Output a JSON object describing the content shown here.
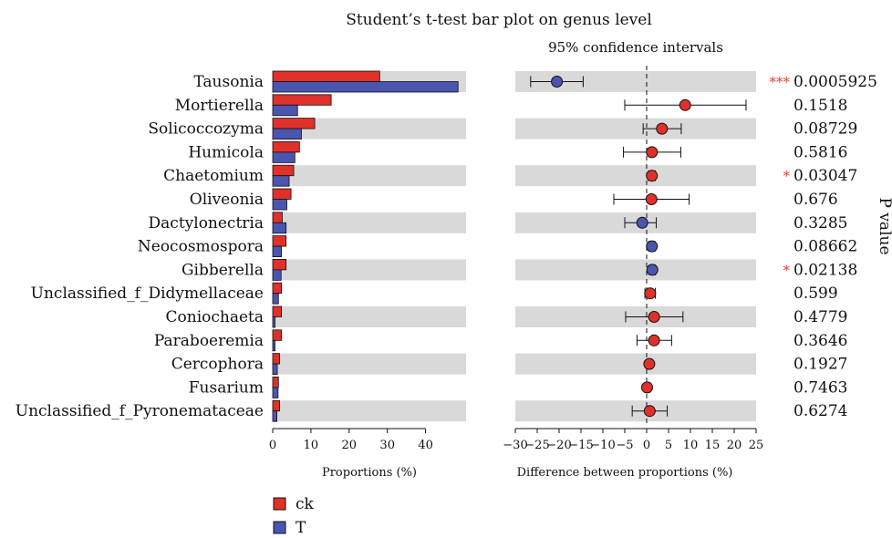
{
  "chart_data": {
    "type": "bar",
    "title": "Student’s t-test bar plot on genus level",
    "ci_title": "95% confidence intervals",
    "pvalue_label": "P value",
    "genera": [
      "Tausonia",
      "Mortierella",
      "Solicoccozyma",
      "Humicola",
      "Chaetomium",
      "Oliveonia",
      "Dactylonectria",
      "Neocosmospora",
      "Gibberella",
      "Unclassified_f_Didymellaceae",
      "Coniochaeta",
      "Paraboeremia",
      "Cercophora",
      "Fusarium",
      "Unclassified_f_Pyronemataceae"
    ],
    "proportions": {
      "xlabel": "Proportions (%)",
      "xlim": [
        0,
        50
      ],
      "ticks": [
        "0",
        "10",
        "20",
        "30",
        "40"
      ],
      "series": [
        {
          "name": "ck",
          "color": "#e0302a",
          "values": [
            28,
            15.3,
            11,
            7,
            5.5,
            4.8,
            2.5,
            3.5,
            3.5,
            2.3,
            2.3,
            2.3,
            1.8,
            1.5,
            1.8
          ]
        },
        {
          "name": "T",
          "color": "#4a55b0",
          "values": [
            48.5,
            6.5,
            7.5,
            5.8,
            4.3,
            3.7,
            3.5,
            2.3,
            2.2,
            1.5,
            0.6,
            0.6,
            1.2,
            1.4,
            1.1
          ]
        }
      ]
    },
    "difference": {
      "xlabel": "Difference between proportions (%)",
      "xlim": [
        -30,
        25
      ],
      "ticks": [
        "−30",
        "−25",
        "−20",
        "−15",
        "−10",
        "−5",
        "0",
        "5",
        "10",
        "15",
        "20",
        "25"
      ],
      "estimates": [
        -20.5,
        8.8,
        3.5,
        1.2,
        1.2,
        1.1,
        -1.0,
        1.2,
        1.3,
        0.8,
        1.7,
        1.7,
        0.6,
        0.1,
        0.7
      ],
      "ci_low": [
        -26.5,
        -5.0,
        -0.8,
        -5.3,
        0.4,
        -7.5,
        -5.0,
        0.5,
        0.6,
        -0.4,
        -4.8,
        -2.2,
        0.1,
        -0.4,
        -3.3
      ],
      "ci_high": [
        -14.5,
        22.7,
        7.9,
        7.8,
        2.0,
        9.7,
        2.2,
        1.9,
        2.0,
        2.0,
        8.3,
        5.7,
        1.2,
        0.7,
        4.7
      ],
      "colors": [
        "#4a55b0",
        "#e0302a",
        "#e0302a",
        "#e0302a",
        "#e0302a",
        "#e0302a",
        "#4a55b0",
        "#4a55b0",
        "#4a55b0",
        "#e0302a",
        "#e0302a",
        "#e0302a",
        "#e0302a",
        "#e0302a",
        "#e0302a"
      ]
    },
    "p_values": [
      "0.0005925",
      "0.1518",
      "0.08729",
      "0.5816",
      "0.03047",
      "0.676",
      "0.3285",
      "0.08662",
      "0.02138",
      "0.599",
      "0.4779",
      "0.3646",
      "0.1927",
      "0.7463",
      "0.6274"
    ],
    "significance": [
      "***",
      "",
      "",
      "",
      "*",
      "",
      "",
      "",
      "*",
      "",
      "",
      "",
      "",
      "",
      ""
    ],
    "shaded_rows": [
      true,
      false,
      true,
      false,
      true,
      false,
      true,
      false,
      true,
      false,
      true,
      false,
      true,
      false,
      true
    ],
    "colors": {
      "ck": "#e0302a",
      "T": "#4a55b0",
      "shade": "#d9d9d9",
      "star": "#e0403a"
    },
    "legend": [
      {
        "name": "ck",
        "color": "#e0302a"
      },
      {
        "name": "T",
        "color": "#4a55b0"
      }
    ],
    "legend_position": "bottom-left"
  }
}
